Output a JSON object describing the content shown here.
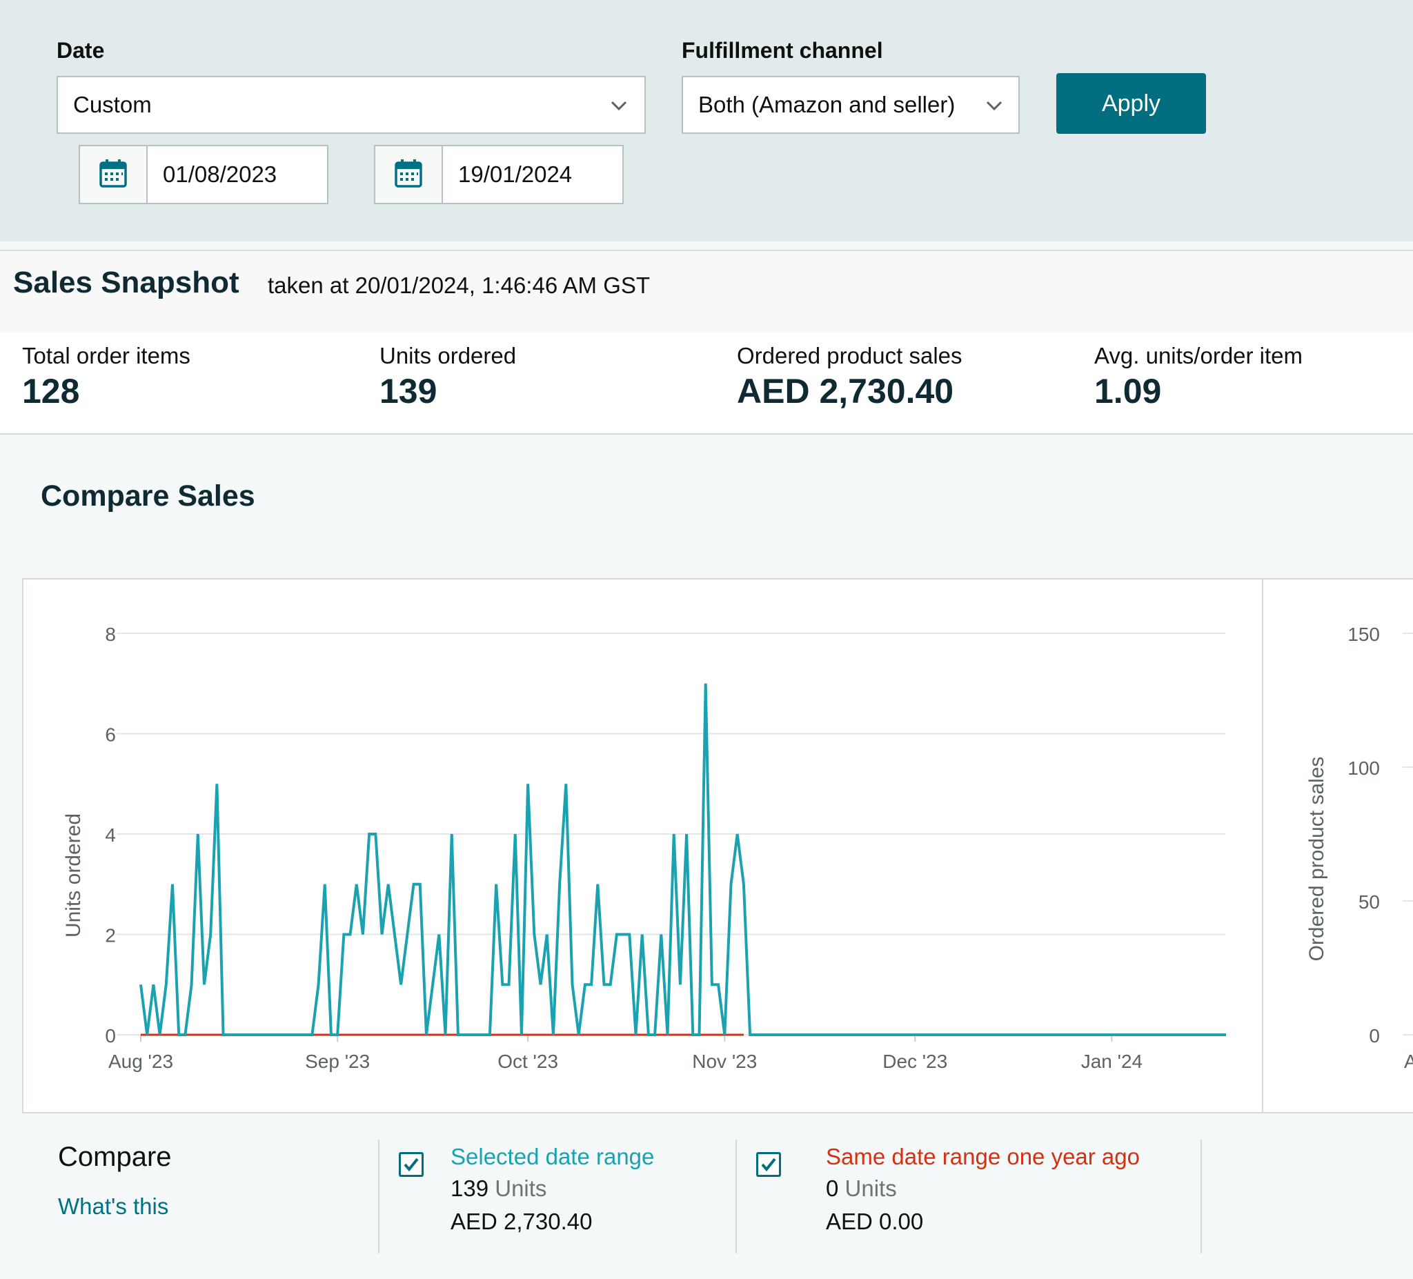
{
  "filters": {
    "date_label": "Date",
    "date_select_value": "Custom",
    "start_date": "01/08/2023",
    "end_date": "19/01/2024",
    "channel_label": "Fulfillment channel",
    "channel_select_value": "Both (Amazon and seller)",
    "apply_label": "Apply"
  },
  "snapshot": {
    "title": "Sales Snapshot",
    "taken_at": "taken at 20/01/2024, 1:46:46 AM GST",
    "metrics": [
      {
        "label": "Total order items",
        "value": "128"
      },
      {
        "label": "Units ordered",
        "value": "139"
      },
      {
        "label": "Ordered product sales",
        "value": "AED 2,730.40"
      },
      {
        "label": "Avg. units/order item",
        "value": "1.09"
      }
    ]
  },
  "compare_sales": {
    "title": "Compare Sales"
  },
  "chart_data": [
    {
      "type": "line",
      "ylabel": "Units ordered",
      "ylim": [
        0,
        8
      ],
      "yticks": [
        0,
        2,
        4,
        6,
        8
      ],
      "xlim": [
        "2023-08-01",
        "2024-01-19"
      ],
      "xticks": [
        {
          "date": "2023-08-01",
          "label": "Aug '23"
        },
        {
          "date": "2023-09-01",
          "label": "Sep '23"
        },
        {
          "date": "2023-10-01",
          "label": "Oct '23"
        },
        {
          "date": "2023-11-01",
          "label": "Nov '23"
        },
        {
          "date": "2023-12-01",
          "label": "Dec '23"
        },
        {
          "date": "2024-01-01",
          "label": "Jan '24"
        }
      ],
      "grid": true,
      "colors": {
        "selected": "#1aa2b0",
        "year_ago": "#d13212"
      },
      "series": [
        {
          "name": "Selected date range",
          "x": [
            "2023-08-01",
            "2023-08-02",
            "2023-08-03",
            "2023-08-04",
            "2023-08-05",
            "2023-08-06",
            "2023-08-07",
            "2023-08-08",
            "2023-08-09",
            "2023-08-10",
            "2023-08-11",
            "2023-08-12",
            "2023-08-13",
            "2023-08-14",
            "2023-08-15",
            "2023-08-16",
            "2023-08-17",
            "2023-08-18",
            "2023-08-19",
            "2023-08-20",
            "2023-08-21",
            "2023-08-22",
            "2023-08-23",
            "2023-08-24",
            "2023-08-25",
            "2023-08-26",
            "2023-08-27",
            "2023-08-28",
            "2023-08-29",
            "2023-08-30",
            "2023-08-31",
            "2023-09-01",
            "2023-09-02",
            "2023-09-03",
            "2023-09-04",
            "2023-09-05",
            "2023-09-06",
            "2023-09-07",
            "2023-09-08",
            "2023-09-09",
            "2023-09-10",
            "2023-09-11",
            "2023-09-12",
            "2023-09-13",
            "2023-09-14",
            "2023-09-15",
            "2023-09-16",
            "2023-09-17",
            "2023-09-18",
            "2023-09-19",
            "2023-09-20",
            "2023-09-21",
            "2023-09-22",
            "2023-09-23",
            "2023-09-24",
            "2023-09-25",
            "2023-09-26",
            "2023-09-27",
            "2023-09-28",
            "2023-09-29",
            "2023-09-30",
            "2023-10-01",
            "2023-10-02",
            "2023-10-03",
            "2023-10-04",
            "2023-10-05",
            "2023-10-06",
            "2023-10-07",
            "2023-10-08",
            "2023-10-09",
            "2023-10-10",
            "2023-10-11",
            "2023-10-12",
            "2023-10-13",
            "2023-10-14",
            "2023-10-15",
            "2023-10-16",
            "2023-10-17",
            "2023-10-18",
            "2023-10-19",
            "2023-10-20",
            "2023-10-21",
            "2023-10-22",
            "2023-10-23",
            "2023-10-24",
            "2023-10-25",
            "2023-10-26",
            "2023-10-27",
            "2023-10-28",
            "2023-10-29",
            "2023-10-30",
            "2023-10-31",
            "2023-11-01",
            "2023-11-02",
            "2023-11-03",
            "2023-11-04",
            "2023-11-05",
            "2023-11-06",
            "2024-01-19"
          ],
          "values": [
            1,
            0,
            1,
            0,
            1,
            3,
            0,
            0,
            1,
            4,
            1,
            2,
            5,
            0,
            0,
            0,
            0,
            0,
            0,
            0,
            0,
            0,
            0,
            0,
            0,
            0,
            0,
            0,
            1,
            3,
            0,
            0,
            2,
            2,
            3,
            2,
            4,
            4,
            2,
            3,
            2,
            1,
            2,
            3,
            3,
            0,
            1,
            2,
            0,
            4,
            0,
            0,
            0,
            0,
            0,
            0,
            3,
            1,
            1,
            4,
            0,
            5,
            2,
            1,
            2,
            0,
            3,
            5,
            1,
            0,
            1,
            1,
            3,
            1,
            1,
            2,
            2,
            2,
            0,
            2,
            0,
            0,
            2,
            0,
            4,
            1,
            4,
            0,
            0,
            7,
            1,
            1,
            0,
            3,
            4,
            3,
            0,
            0,
            0
          ]
        },
        {
          "name": "Same date range one year ago",
          "x": [
            "2023-08-01",
            "2023-11-04"
          ],
          "values": [
            0,
            0
          ]
        }
      ]
    },
    {
      "type": "line",
      "ylabel": "Ordered product sales",
      "ylim": [
        0,
        150
      ],
      "yticks": [
        0,
        50,
        100,
        150
      ],
      "xticks": [
        {
          "date": "2023-08-01",
          "label": "Aug"
        }
      ]
    }
  ],
  "compare_legend": {
    "title": "Compare",
    "whats_this": "What's this",
    "selected": {
      "title": "Selected date range",
      "units_value": "139",
      "units_label": "Units",
      "sales": "AED 2,730.40"
    },
    "year_ago": {
      "title": "Same date range one year ago",
      "units_value": "0",
      "units_label": "Units",
      "sales": "AED 0.00"
    }
  }
}
